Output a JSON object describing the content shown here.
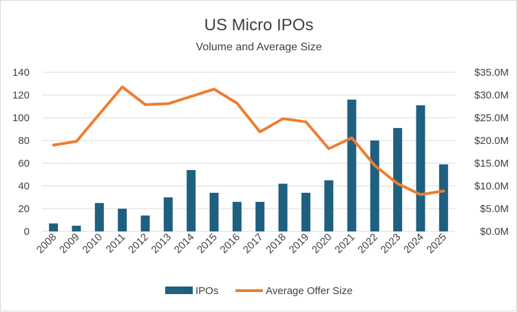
{
  "chart_data": {
    "type": "bar",
    "title": "US Micro IPOs",
    "subtitle": "Volume and Average Size",
    "categories": [
      "2008",
      "2009",
      "2010",
      "2011",
      "2012",
      "2013",
      "2014",
      "2015",
      "2016",
      "2017",
      "2018",
      "2019",
      "2020",
      "2021",
      "2022",
      "2023",
      "2024",
      "2025"
    ],
    "series": [
      {
        "name": "IPOs",
        "type": "bar",
        "axis": "left",
        "color": "#1f5f7f",
        "values": [
          7,
          5,
          25,
          20,
          14,
          30,
          54,
          34,
          26,
          26,
          42,
          34,
          45,
          116,
          80,
          91,
          111,
          59
        ]
      },
      {
        "name": "Average Offer Size",
        "type": "line",
        "axis": "right",
        "color": "#ed7d31",
        "values": [
          19.0,
          19.8,
          25.8,
          31.8,
          27.9,
          28.1,
          29.7,
          31.3,
          28.2,
          21.9,
          24.8,
          24.1,
          18.2,
          20.6,
          14.5,
          10.5,
          8.1,
          8.9
        ]
      }
    ],
    "y_left": {
      "min": 0,
      "max": 140,
      "step": 20,
      "ticks": [
        "0",
        "20",
        "40",
        "60",
        "80",
        "100",
        "120",
        "140"
      ]
    },
    "y_right": {
      "min": 0,
      "max": 35,
      "step": 5,
      "ticks": [
        "$0.0M",
        "$5.0M",
        "$10.0M",
        "$15.0M",
        "$20.0M",
        "$25.0M",
        "$30.0M",
        "$35.0M"
      ]
    },
    "grid": true,
    "legend_position": "bottom"
  }
}
